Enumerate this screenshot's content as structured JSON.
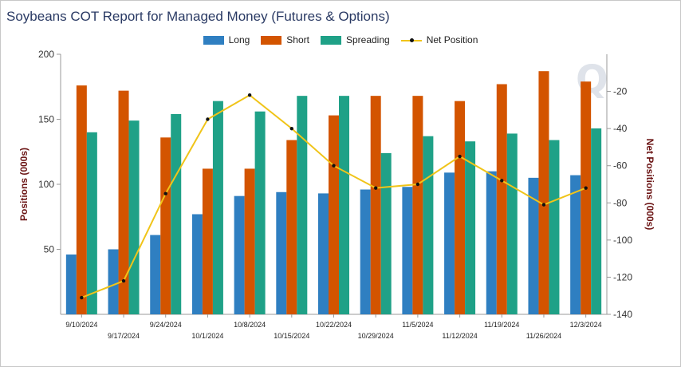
{
  "chart_data": {
    "type": "bar",
    "title": "Soybeans COT Report for Managed Money (Futures & Options)",
    "ylabel": "Positions (000s)",
    "y2label": "Net Positions (000s)",
    "ylim": [
      0,
      200
    ],
    "y2lim": [
      -140,
      0
    ],
    "yticks": [
      50,
      100,
      150,
      200
    ],
    "y2ticks": [
      -20,
      -40,
      -60,
      -80,
      -100,
      -120,
      -140
    ],
    "categories": [
      "9/10/2024",
      "9/17/2024",
      "9/24/2024",
      "10/1/2024",
      "10/8/2024",
      "10/15/2024",
      "10/22/2024",
      "10/29/2024",
      "11/5/2024",
      "11/12/2024",
      "11/19/2024",
      "11/26/2024",
      "12/3/2024"
    ],
    "series": [
      {
        "name": "Long",
        "type": "bar",
        "axis": "left",
        "color": "#2f7fc1",
        "values": [
          46,
          50,
          61,
          77,
          91,
          94,
          93,
          96,
          98,
          109,
          110,
          105,
          107
        ]
      },
      {
        "name": "Short",
        "type": "bar",
        "axis": "left",
        "color": "#d35400",
        "values": [
          176,
          172,
          136,
          112,
          112,
          134,
          153,
          168,
          168,
          164,
          177,
          187,
          179
        ]
      },
      {
        "name": "Spreading",
        "type": "bar",
        "axis": "left",
        "color": "#1fa187",
        "values": [
          140,
          149,
          154,
          164,
          156,
          168,
          168,
          124,
          137,
          133,
          139,
          134,
          143
        ]
      },
      {
        "name": "Net Position",
        "type": "line",
        "axis": "right",
        "color": "#f0c419",
        "values": [
          -131,
          -122,
          -75,
          -35,
          -22,
          -40,
          -60,
          -72,
          -70,
          -55,
          -68,
          -81,
          -72
        ]
      }
    ],
    "legend": "top-center",
    "grid": false
  },
  "watermark": "Q"
}
